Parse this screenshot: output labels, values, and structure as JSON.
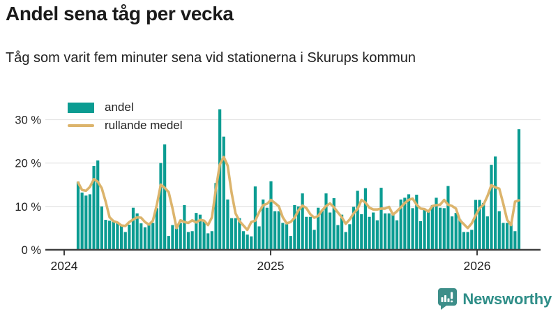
{
  "header": {
    "title": "Andel sena tåg per vecka",
    "subtitle": "Tåg som varit fem minuter sena vid stationerna i Skurups kommun"
  },
  "legend": [
    {
      "label": "andel",
      "type": "bar",
      "color": "#0b9c92"
    },
    {
      "label": "rullande medel",
      "type": "line",
      "color": "#dcb46c"
    }
  ],
  "footer": {
    "brand": "Newsworthy",
    "brand_color": "#2f8e88",
    "icon_color": "#3d8e89"
  },
  "chart_data": {
    "type": "bar",
    "title": "Andel sena tåg per vecka",
    "subtitle": "Tåg som varit fem minuter sena vid stationerna i Skurups kommun",
    "x_unit": "vecka (weekly bars, early 2024 to early 2026)",
    "x_axis_ticks": [
      "2024",
      "2025",
      "2026"
    ],
    "y_axis_ticks": [
      "0 %",
      "10 %",
      "20 %",
      "30 %"
    ],
    "y_tick_values": [
      0,
      10,
      20,
      30
    ],
    "ylim": [
      0,
      33
    ],
    "grid": "horizontal",
    "legend_position": "top-left-inside",
    "series": [
      {
        "name": "andel",
        "type": "bar",
        "color": "#0b9c92",
        "values": [
          15.7,
          13.2,
          12.5,
          12.8,
          19.3,
          20.6,
          10.0,
          6.9,
          6.7,
          6.5,
          6.1,
          5.8,
          4.1,
          5.8,
          9.7,
          8.4,
          6.1,
          5.2,
          5.8,
          6.2,
          9.6,
          20.0,
          24.3,
          3.2,
          5.7,
          4.9,
          6.2,
          10.3,
          4.1,
          4.3,
          8.5,
          8.1,
          6.5,
          3.8,
          4.3,
          15.4,
          32.4,
          26.1,
          11.6,
          7.3,
          7.3,
          7.3,
          4.3,
          3.5,
          3.1,
          14.6,
          5.4,
          11.6,
          9.7,
          15.8,
          8.9,
          8.9,
          6.2,
          5.9,
          3.2,
          10.3,
          10.0,
          13.0,
          7.6,
          7.6,
          4.6,
          9.7,
          9.2,
          13.0,
          8.6,
          11.9,
          5.7,
          8.1,
          4.1,
          5.9,
          9.9,
          13.6,
          8.2,
          14.2,
          7.6,
          8.6,
          6.8,
          14.3,
          8.4,
          8.4,
          8.6,
          6.8,
          11.6,
          12.0,
          12.8,
          9.6,
          12.7,
          6.6,
          9.2,
          9.0,
          10.3,
          12.0,
          9.7,
          9.6,
          14.7,
          7.7,
          8.5,
          7.0,
          4.1,
          4.1,
          4.6,
          11.5,
          11.5,
          10.8,
          7.7,
          19.6,
          21.5,
          8.9,
          6.2,
          6.2,
          6.1,
          4.3,
          27.8
        ]
      },
      {
        "name": "rullande medel",
        "type": "line",
        "color": "#dcb46c",
        "values": [
          15.5,
          13.8,
          13.6,
          14.5,
          16.3,
          15.7,
          14.2,
          11.1,
          7.5,
          6.6,
          6.3,
          5.6,
          5.5,
          6.4,
          7.0,
          7.5,
          7.4,
          6.4,
          5.8,
          6.7,
          10.4,
          15.0,
          14.3,
          13.3,
          9.5,
          5.0,
          6.8,
          6.4,
          6.2,
          6.8,
          6.3,
          6.9,
          6.7,
          5.7,
          7.5,
          14.0,
          19.6,
          21.4,
          19.4,
          13.1,
          8.4,
          6.6,
          5.6,
          4.6,
          6.4,
          6.7,
          8.7,
          10.3,
          10.6,
          11.5,
          10.8,
          10.0,
          7.5,
          6.1,
          6.4,
          7.4,
          9.1,
          10.2,
          9.6,
          8.2,
          7.4,
          7.8,
          9.1,
          10.1,
          10.7,
          9.8,
          8.6,
          7.5,
          6.0,
          7.0,
          8.4,
          9.4,
          11.5,
          10.9,
          9.7,
          9.3,
          9.3,
          9.5,
          9.5,
          9.9,
          8.1,
          8.9,
          9.8,
          10.8,
          11.5,
          11.8,
          10.4,
          9.5,
          9.4,
          8.8,
          10.1,
          10.3,
          10.4,
          11.5,
          10.4,
          10.1,
          9.5,
          6.8,
          5.9,
          5.0,
          6.1,
          7.9,
          9.6,
          10.4,
          12.4,
          14.9,
          14.4,
          14.1,
          10.7,
          6.9,
          5.7,
          11.1,
          11.4
        ]
      }
    ],
    "colors": {
      "grid": "#e4e4e4",
      "axis": "#3f3f3f",
      "tick_text": "#222222"
    }
  }
}
